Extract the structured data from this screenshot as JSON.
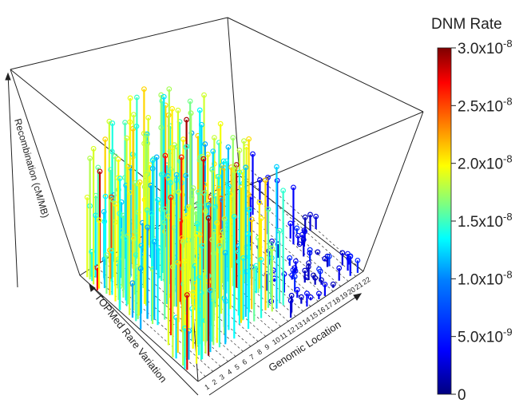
{
  "chart_data": {
    "type": "3d-lollipop",
    "axes": {
      "x_label": "Genomic Location",
      "y_label": "TOPMed Rare Variation",
      "z_label": "Recombination (cM/MB)",
      "x_ticks": [
        "1",
        "2",
        "3",
        "4",
        "5",
        "6",
        "7",
        "8",
        "9",
        "10",
        "11",
        "12",
        "13",
        "14",
        "15",
        "16",
        "17",
        "18",
        "19",
        "20",
        "21",
        "22"
      ]
    },
    "colorbar": {
      "title": "DNM Rate",
      "min": 0,
      "max": 3e-08,
      "ticks": [
        {
          "value": 3e-08,
          "base": "3.0x10",
          "exp": "-8"
        },
        {
          "value": 2.5e-08,
          "base": "2.5x10",
          "exp": "-8"
        },
        {
          "value": 2e-08,
          "base": "2.0x10",
          "exp": "-8"
        },
        {
          "value": 1.5e-08,
          "base": "1.5x10",
          "exp": "-8"
        },
        {
          "value": 1e-08,
          "base": "1.0x10",
          "exp": "-8"
        },
        {
          "value": 5e-09,
          "base": "5.0x10",
          "exp": "-9"
        },
        {
          "value": 0,
          "base": "0",
          "exp": ""
        }
      ],
      "colors": [
        "#00007f",
        "#0000ff",
        "#007fff",
        "#00ffff",
        "#7fff7f",
        "#ffff00",
        "#ff7f00",
        "#ff0000",
        "#7f0000"
      ]
    },
    "grid": true,
    "point_style": "open circle marker atop vertical stem",
    "series_note": "Dense cloud of several hundred stems; tall stems green-cyan-yellow, short stems near floor blue."
  }
}
